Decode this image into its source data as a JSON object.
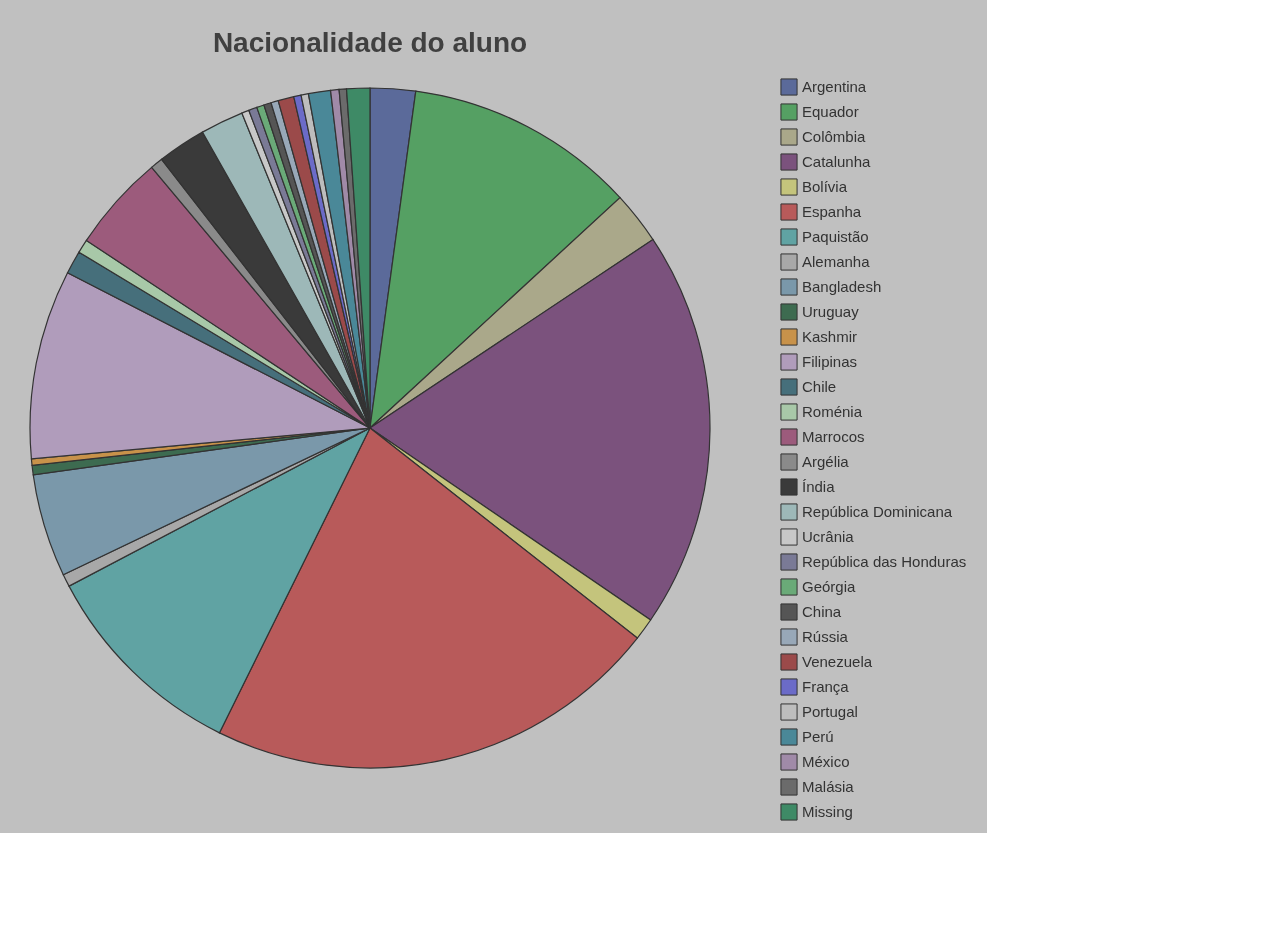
{
  "chart_data": {
    "type": "pie",
    "title": "Nacionalidade do aluno",
    "categories": [
      "Argentina",
      "Equador",
      "Colômbia",
      "Catalunha",
      "Bolívia",
      "Espanha",
      "Paquistão",
      "Alemanha",
      "Bangladesh",
      "Uruguay",
      "Kashmir",
      "Filipinas",
      "Chile",
      "Roménia",
      "Marrocos",
      "Argélia",
      "Índia",
      "República Dominicana",
      "Ucrânia",
      "República das Honduras",
      "Geórgia",
      "China",
      "Rússia",
      "Venezuela",
      "França",
      "Portugal",
      "Perú",
      "México",
      "Malásia",
      "Missing"
    ],
    "values": [
      2.15,
      11.0,
      2.5,
      18.9,
      1.05,
      21.7,
      10.0,
      0.6,
      4.9,
      0.45,
      0.3,
      9.0,
      1.1,
      0.65,
      4.6,
      0.6,
      2.3,
      2.05,
      0.35,
      0.4,
      0.35,
      0.35,
      0.35,
      0.75,
      0.35,
      0.35,
      1.05,
      0.4,
      0.35,
      1.1
    ],
    "colors": [
      "#5b6a9a",
      "#55a063",
      "#aaa88a",
      "#7b527d",
      "#c4c47c",
      "#b85a5a",
      "#60a3a3",
      "#a8a8a8",
      "#7a98aa",
      "#3d6b50",
      "#c8924a",
      "#b09cbb",
      "#466f7b",
      "#a8c8a8",
      "#9c5b7c",
      "#8a8a8a",
      "#3a3a3a",
      "#9db8b8",
      "#c8c8c8",
      "#7a7a96",
      "#6aaa78",
      "#555555",
      "#98a8b8",
      "#9b4a4a",
      "#6b6bc8",
      "#bdbdbd",
      "#4a8898",
      "#a08aa8",
      "#6b6b6b",
      "#3e8a66"
    ],
    "legend": "right"
  }
}
